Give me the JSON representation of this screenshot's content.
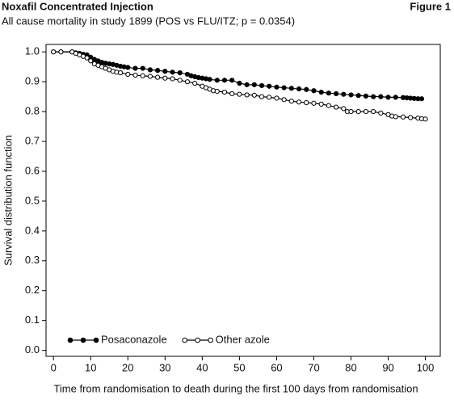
{
  "chart_data": {
    "type": "line",
    "title": "Noxafil Concentrated Injection",
    "figure_label": "Figure 1",
    "subtitle": "All cause mortality in study 1899 (POS vs FLU/ITZ; p = 0.0354)",
    "x_label": "Time from randomisation to death during the first 100 days from randomisation",
    "y_label": "Survival distribution function",
    "xlim": [
      -2,
      104
    ],
    "ylim": [
      -0.02,
      1.025
    ],
    "xticks": [
      0,
      10,
      20,
      30,
      40,
      50,
      60,
      70,
      80,
      90,
      100
    ],
    "yticks": [
      {
        "value": 0,
        "label": "0.0"
      },
      0.1,
      0.2,
      0.3,
      0.4,
      0.5,
      0.6,
      0.7,
      0.8,
      0.9,
      {
        "value": 1,
        "label": "1.0"
      }
    ],
    "legend": "lower left",
    "series": [
      {
        "name": "Posaconazole",
        "color": "#000000",
        "marker_fill": "#000000",
        "x": [
          0,
          2,
          5,
          6,
          7,
          8,
          9,
          10,
          11,
          12,
          13,
          14,
          15,
          16,
          17,
          18,
          19,
          20,
          22,
          24,
          26,
          28,
          30,
          32,
          34,
          36,
          37,
          38,
          39,
          40,
          41,
          42,
          44,
          46,
          48,
          50,
          52,
          54,
          56,
          58,
          60,
          62,
          64,
          66,
          68,
          70,
          72,
          74,
          76,
          78,
          80,
          82,
          84,
          86,
          88,
          90,
          92,
          94,
          95,
          96,
          97,
          98,
          99
        ],
        "values": [
          1.0,
          1.0,
          1.0,
          0.997,
          0.995,
          0.992,
          0.99,
          0.982,
          0.975,
          0.97,
          0.965,
          0.962,
          0.96,
          0.958,
          0.955,
          0.952,
          0.95,
          0.948,
          0.945,
          0.945,
          0.94,
          0.938,
          0.935,
          0.932,
          0.93,
          0.925,
          0.92,
          0.917,
          0.914,
          0.912,
          0.91,
          0.908,
          0.905,
          0.905,
          0.905,
          0.895,
          0.89,
          0.89,
          0.887,
          0.885,
          0.882,
          0.88,
          0.878,
          0.876,
          0.874,
          0.87,
          0.865,
          0.862,
          0.86,
          0.858,
          0.856,
          0.854,
          0.852,
          0.85,
          0.85,
          0.848,
          0.848,
          0.847,
          0.846,
          0.845,
          0.844,
          0.843,
          0.843
        ]
      },
      {
        "name": "Other azole",
        "color": "#000000",
        "marker_fill": "#ffffff",
        "x": [
          0,
          2,
          5,
          6,
          7,
          8,
          9,
          10,
          11,
          12,
          13,
          14,
          15,
          16,
          17,
          18,
          20,
          22,
          24,
          26,
          28,
          30,
          32,
          34,
          36,
          38,
          40,
          41,
          42,
          43,
          44,
          46,
          48,
          50,
          52,
          54,
          56,
          58,
          60,
          62,
          64,
          66,
          68,
          70,
          72,
          74,
          76,
          78,
          79,
          80,
          82,
          84,
          86,
          88,
          90,
          91,
          92,
          94,
          96,
          98,
          99,
          100
        ],
        "values": [
          1.0,
          1.0,
          1.0,
          0.995,
          0.99,
          0.985,
          0.98,
          0.97,
          0.96,
          0.955,
          0.95,
          0.945,
          0.94,
          0.935,
          0.932,
          0.93,
          0.925,
          0.922,
          0.92,
          0.918,
          0.915,
          0.912,
          0.91,
          0.905,
          0.9,
          0.895,
          0.885,
          0.88,
          0.875,
          0.87,
          0.868,
          0.865,
          0.86,
          0.858,
          0.856,
          0.855,
          0.85,
          0.848,
          0.845,
          0.84,
          0.835,
          0.832,
          0.83,
          0.828,
          0.825,
          0.82,
          0.815,
          0.81,
          0.8,
          0.8,
          0.8,
          0.8,
          0.8,
          0.795,
          0.79,
          0.785,
          0.783,
          0.782,
          0.78,
          0.778,
          0.776,
          0.775
        ]
      }
    ]
  }
}
